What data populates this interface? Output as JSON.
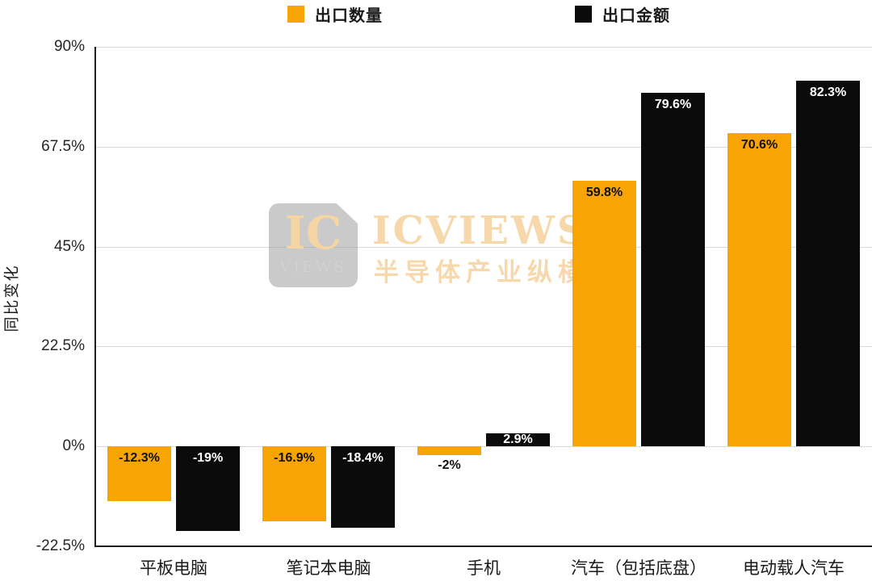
{
  "legend": {
    "items": [
      {
        "label": "出口数量",
        "color": "#F9A405"
      },
      {
        "label": "出口金额",
        "color": "#0B0B0B"
      }
    ]
  },
  "chart_data": {
    "type": "bar",
    "title": "",
    "xlabel": "",
    "ylabel": "同比变化",
    "ylim": [
      -22.5,
      90
    ],
    "grid": true,
    "legend_position": "top",
    "yticks": [
      {
        "value": 90,
        "label": "90%"
      },
      {
        "value": 67.5,
        "label": "67.5%"
      },
      {
        "value": 45,
        "label": "45%"
      },
      {
        "value": 22.5,
        "label": "22.5%"
      },
      {
        "value": 0,
        "label": "0%"
      },
      {
        "value": -22.5,
        "label": "-22.5%"
      }
    ],
    "categories": [
      "平板电脑",
      "笔记本电脑",
      "手机",
      "汽车（包括底盘）",
      "电动载人汽车"
    ],
    "series": [
      {
        "name": "出口数量",
        "color": "#F9A405",
        "label_color": "#111111",
        "values": [
          -12.3,
          -16.9,
          -2,
          59.8,
          70.6
        ],
        "labels": [
          "-12.3%",
          "-16.9%",
          "-2%",
          "59.8%",
          "70.6%"
        ],
        "label_pos": [
          "in",
          "in",
          "below",
          "in",
          "in"
        ]
      },
      {
        "name": "出口金额",
        "color": "#0B0B0B",
        "label_color": "#FFFFFF",
        "values": [
          -19,
          -18.4,
          2.9,
          79.6,
          82.3
        ],
        "labels": [
          "-19%",
          "-18.4%",
          "2.9%",
          "79.6%",
          "82.3%"
        ],
        "label_pos": [
          "in",
          "in",
          "fit",
          "in",
          "in"
        ]
      }
    ]
  },
  "watermark": {
    "badge_top": "IC",
    "badge_bottom": "VIEWS",
    "title": "ICVIEWS",
    "subtitle": "半导体产业纵横"
  }
}
